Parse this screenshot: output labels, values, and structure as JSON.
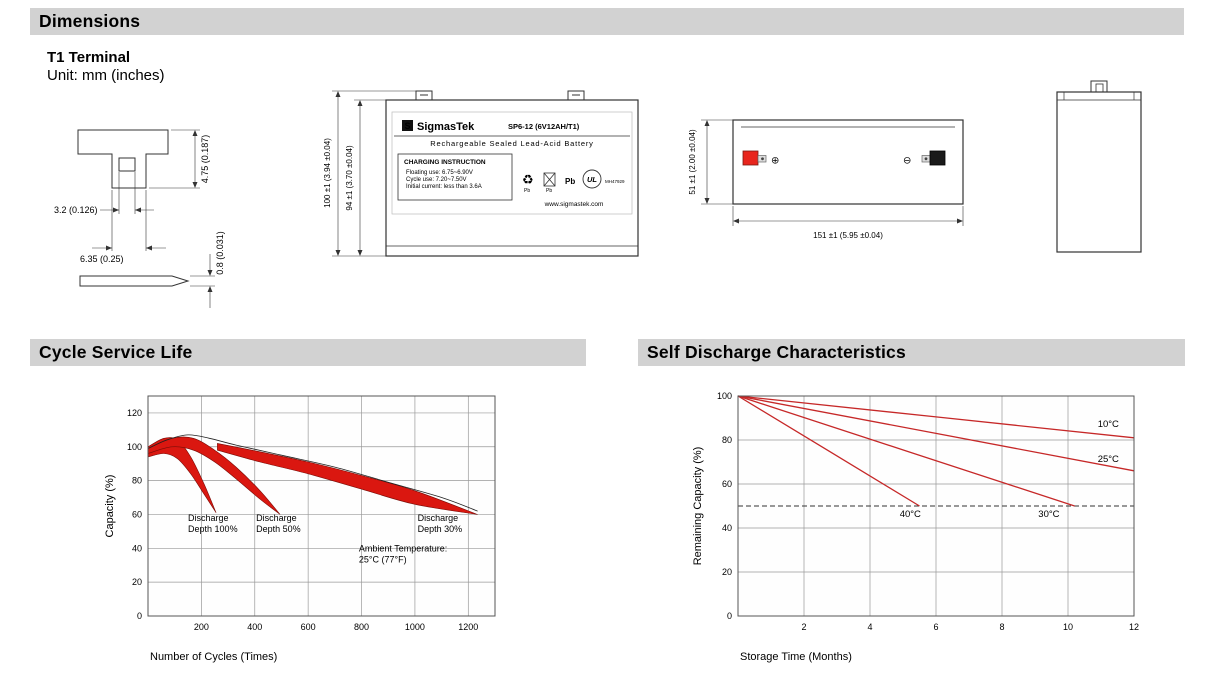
{
  "colors": {
    "header_bg": "#d2d2d2",
    "band_red": "#da1710",
    "line_red": "#c62828",
    "drawing_stroke": "#333333"
  },
  "icons": {
    "recycle": "♻",
    "plus": "⊕",
    "minus": "⊖",
    "ul": "UL"
  },
  "dimensions": {
    "title": "Dimensions",
    "terminal_type": "T1 Terminal",
    "unit": "Unit: mm (inches)",
    "terminal": {
      "height": "4.75 (0.187)",
      "offset": "3.2 (0.126)",
      "width": "6.35 (0.25)",
      "thickness": "0.8 (0.031)"
    },
    "front": {
      "total_height": "100 ±1 (3.94 ±0.04)",
      "case_height": "94 ±1 (3.70 ±0.04)",
      "brand": "SigmasTek",
      "brand_initial": "S",
      "model": "SP6-12 (6V12AH/T1)",
      "battery_type": "Rechargeable Sealed Lead-Acid Battery",
      "charging_title": "CHARGING INSTRUCTION",
      "charging_lines": [
        "Floating use: 6.75~6.90V",
        "Cycle use: 7.20~7.50V",
        "Initial current: less than 3.6A"
      ],
      "pb_label": "Pb",
      "ul_code": "MH47929",
      "website": "www.sigmastek.com"
    },
    "side": {
      "height": "51 ±1 (2.00 ±0.04)",
      "length": "151 ±1 (5.95 ±0.04)"
    }
  },
  "sections": {
    "cycle": {
      "title": "Cycle Service Life"
    },
    "self_discharge": {
      "title": "Self Discharge Characteristics"
    }
  },
  "chart_data": [
    {
      "type": "area",
      "title": "Cycle Service Life",
      "xlabel": "Number of Cycles (Times)",
      "ylabel": "Capacity (%)",
      "xlim": [
        0,
        1300
      ],
      "ylim": [
        0,
        130
      ],
      "xticks": [
        200,
        400,
        600,
        800,
        1000,
        1200
      ],
      "yticks": [
        0,
        20,
        40,
        60,
        80,
        100,
        120
      ],
      "grid": true,
      "grid_color": "#999999",
      "band_color": "#da1710",
      "band_edge": "#7a0d08",
      "margin": {
        "l": 48,
        "r": 20,
        "t": 14,
        "b": 66
      },
      "bands": [
        {
          "name": "Discharge Depth 100%",
          "upper": [
            [
              0,
              100
            ],
            [
              60,
              105
            ],
            [
              110,
              104
            ],
            [
              160,
              94
            ],
            [
              210,
              78
            ],
            [
              255,
              61
            ]
          ],
          "lower": [
            [
              0,
              94
            ],
            [
              60,
              96
            ],
            [
              110,
              93
            ],
            [
              160,
              84
            ],
            [
              210,
              72
            ],
            [
              255,
              61
            ]
          ]
        },
        {
          "name": "Discharge Depth 50%",
          "upper": [
            [
              0,
              99
            ],
            [
              90,
              105
            ],
            [
              170,
              105
            ],
            [
              250,
              98
            ],
            [
              330,
              88
            ],
            [
              420,
              74
            ],
            [
              495,
              60
            ]
          ],
          "lower": [
            [
              0,
              96
            ],
            [
              90,
              100
            ],
            [
              170,
              98
            ],
            [
              250,
              91
            ],
            [
              330,
              81
            ],
            [
              420,
              69
            ],
            [
              495,
              60
            ]
          ]
        },
        {
          "name": "Discharge Depth 30%",
          "upper": [
            [
              260,
              102
            ],
            [
              420,
              97
            ],
            [
              600,
              91
            ],
            [
              800,
              83
            ],
            [
              1000,
              74
            ],
            [
              1235,
              60
            ]
          ],
          "lower": [
            [
              260,
              98
            ],
            [
              420,
              91
            ],
            [
              600,
              84
            ],
            [
              800,
              75
            ],
            [
              1000,
              66
            ],
            [
              1235,
              60
            ]
          ]
        }
      ],
      "envelope": [
        [
          0,
          99
        ],
        [
          70,
          104
        ],
        [
          150,
          107
        ],
        [
          230,
          105
        ],
        [
          330,
          101
        ],
        [
          500,
          95
        ],
        [
          700,
          88
        ],
        [
          900,
          79
        ],
        [
          1100,
          70
        ],
        [
          1235,
          62
        ]
      ],
      "annotations": [
        {
          "text": "Discharge\nDepth 100%",
          "x": 150,
          "y": 56
        },
        {
          "text": "Discharge\nDepth 50%",
          "x": 405,
          "y": 56
        },
        {
          "text": "Discharge\nDepth 30%",
          "x": 1010,
          "y": 56
        },
        {
          "text": "Ambient Temperature:\n25°C (77°F)",
          "x": 790,
          "y": 38
        }
      ]
    },
    {
      "type": "line",
      "title": "Self Discharge Characteristics",
      "xlabel": "Storage Time (Months)",
      "ylabel": "Remaining Capacity (%)",
      "xlim": [
        0,
        12
      ],
      "ylim": [
        0,
        100
      ],
      "xticks": [
        2,
        4,
        6,
        8,
        10,
        12
      ],
      "yticks": [
        0,
        20,
        40,
        60,
        80,
        100
      ],
      "grid": true,
      "grid_color": "#999999",
      "line_color": "#c62828",
      "dashed_y": 50,
      "margin": {
        "l": 50,
        "r": 14,
        "t": 14,
        "b": 66
      },
      "series": [
        {
          "name": "10C",
          "points": [
            [
              0,
              100
            ],
            [
              12,
              81
            ]
          ]
        },
        {
          "name": "25C",
          "points": [
            [
              0,
              100
            ],
            [
              12,
              66
            ]
          ]
        },
        {
          "name": "30C",
          "points": [
            [
              0,
              100
            ],
            [
              10.2,
              50
            ]
          ]
        },
        {
          "name": "40C",
          "points": [
            [
              0,
              100
            ],
            [
              5.5,
              50
            ]
          ]
        }
      ],
      "line_labels": [
        {
          "text": "10°C",
          "x": 10.9,
          "y": 86
        },
        {
          "text": "25°C",
          "x": 10.9,
          "y": 70
        },
        {
          "text": "40°C",
          "x": 4.9,
          "y": 45
        },
        {
          "text": "30°C",
          "x": 9.1,
          "y": 45
        }
      ]
    }
  ]
}
